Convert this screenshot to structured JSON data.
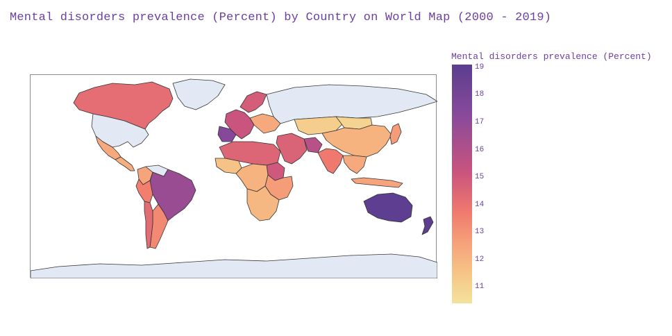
{
  "title": "Mental disorders prevalence (Percent) by Country on World Map (2000 - 2019)",
  "colorbar": {
    "title": "Mental disorders prevalence (Percent)",
    "min": 10.4,
    "max": 19.1,
    "ticks": [
      "19",
      "18",
      "17",
      "16",
      "15",
      "14",
      "13",
      "12",
      "11"
    ],
    "colors": [
      "#5a3d8f",
      "#8b4a9a",
      "#c9547e",
      "#f07a6e",
      "#f6a27a",
      "#f6c687",
      "#f3e29c"
    ]
  },
  "colors": {
    "no_data": "#e3e9f4",
    "border": "#333333",
    "title": "#6b3fa0"
  },
  "regions": [
    {
      "name": "Canada",
      "value": 15.2
    },
    {
      "name": "Greenland",
      "value": null
    },
    {
      "name": "United States",
      "value": null
    },
    {
      "name": "Mexico",
      "value": 13.0
    },
    {
      "name": "Central America",
      "value": 12.8
    },
    {
      "name": "Colombia",
      "value": 13.2
    },
    {
      "name": "Venezuela",
      "value": null
    },
    {
      "name": "Brazil",
      "value": 17.3
    },
    {
      "name": "Peru",
      "value": 14.6
    },
    {
      "name": "Argentina",
      "value": 14.2
    },
    {
      "name": "Chile",
      "value": 15.3
    },
    {
      "name": "Western Europe",
      "value": 16.2
    },
    {
      "name": "Spain",
      "value": 17.8
    },
    {
      "name": "Scandinavia",
      "value": 15.8
    },
    {
      "name": "Eastern Europe",
      "value": 13.0
    },
    {
      "name": "Russia",
      "value": null
    },
    {
      "name": "North Africa",
      "value": 15.5
    },
    {
      "name": "West Africa",
      "value": 12.0
    },
    {
      "name": "Sudan",
      "value": 16.0
    },
    {
      "name": "Central Africa",
      "value": 12.6
    },
    {
      "name": "East Africa",
      "value": 13.5
    },
    {
      "name": "Southern Africa",
      "value": 12.4
    },
    {
      "name": "Middle East",
      "value": 15.6
    },
    {
      "name": "Iran",
      "value": 16.6
    },
    {
      "name": "Central Asia",
      "value": 11.5
    },
    {
      "name": "Mongolia",
      "value": 11.2
    },
    {
      "name": "China",
      "value": 12.6
    },
    {
      "name": "India",
      "value": 14.8
    },
    {
      "name": "Southeast Asia",
      "value": 13.0
    },
    {
      "name": "Japan",
      "value": 13.5
    },
    {
      "name": "Indonesia",
      "value": 13.2
    },
    {
      "name": "Australia",
      "value": 19.0
    },
    {
      "name": "New Zealand",
      "value": 19.0
    },
    {
      "name": "Antarctica",
      "value": null
    }
  ]
}
